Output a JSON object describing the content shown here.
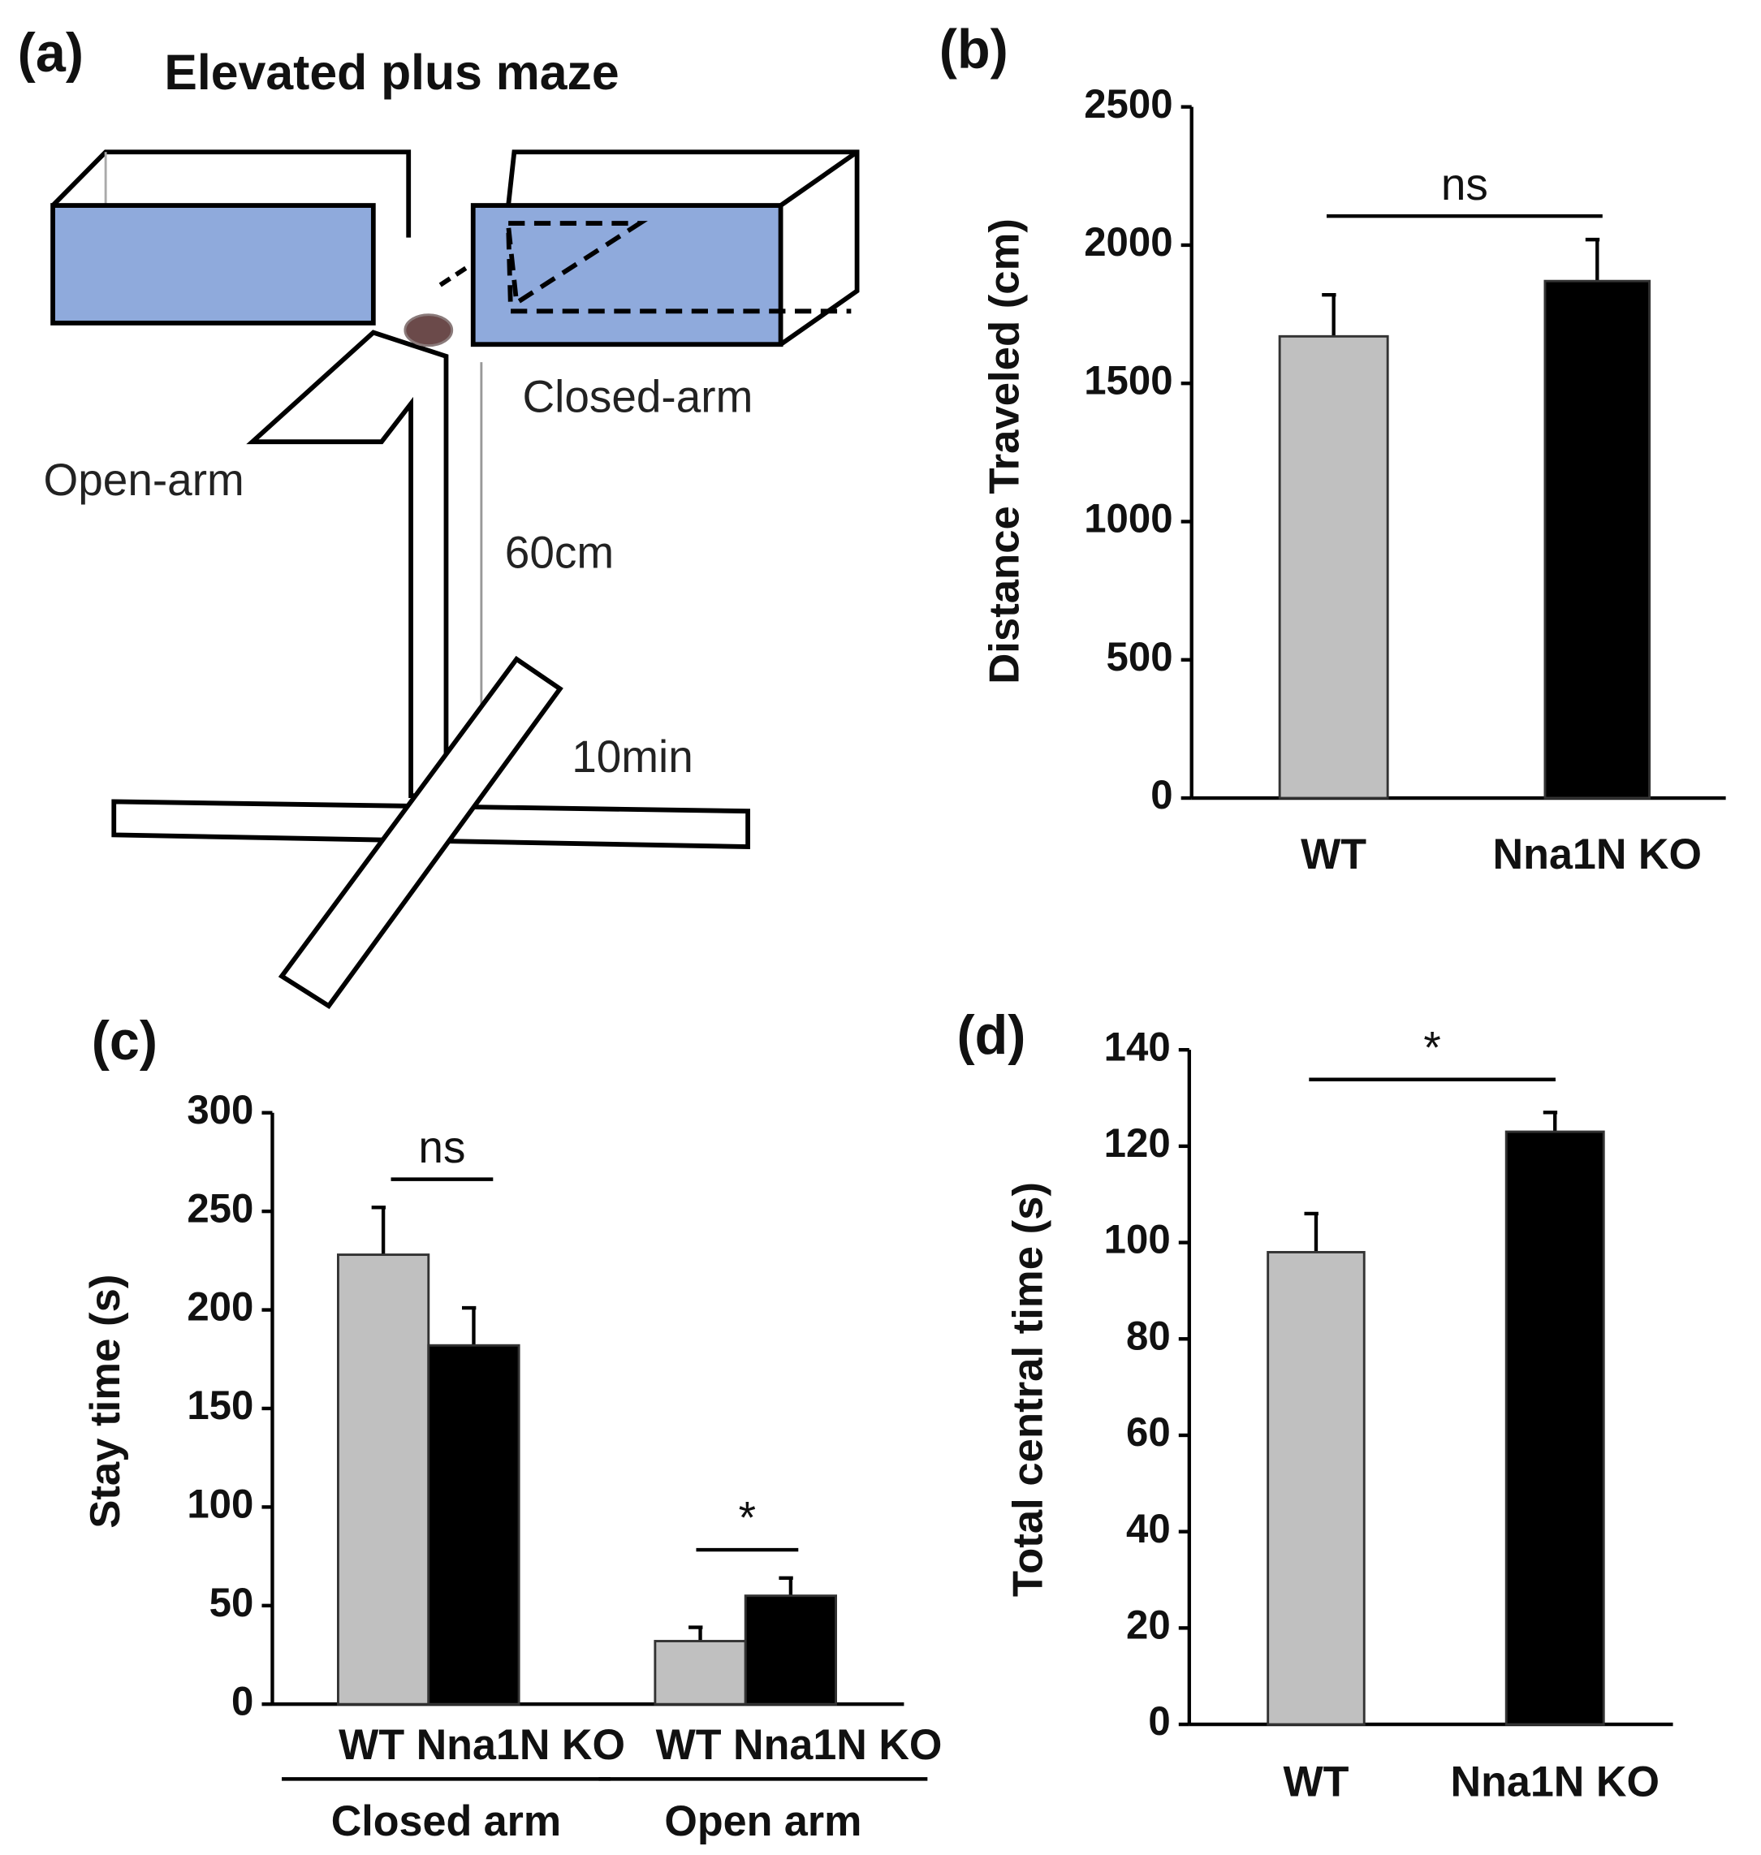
{
  "diagram": {
    "panel": "(a)",
    "title": "Elevated plus maze",
    "labels": [
      "Closed-arm",
      "Open-arm",
      "60cm",
      "10min"
    ]
  },
  "chart_data": [
    {
      "type": "bar",
      "panel": "(b)",
      "y_label": "Distance Traveled (cm)",
      "categories": [
        "WT",
        "Nna1N KO"
      ],
      "values": [
        1670,
        1870
      ],
      "errors": [
        150,
        150
      ],
      "colors": [
        "#c0c0c0",
        "#000000"
      ],
      "annotation": "ns",
      "ylim": [
        0,
        2500
      ],
      "yticks": [
        0,
        500,
        1000,
        1500,
        2000,
        2500
      ]
    },
    {
      "type": "grouped_bar",
      "panel": "(c)",
      "y_label": "Stay time (s)",
      "categories": [
        "Closed arm",
        "Open arm"
      ],
      "series": [
        {
          "name": "WT",
          "color": "#c0c0c0",
          "values": [
            228,
            32
          ],
          "errors": [
            24,
            7
          ]
        },
        {
          "name": "Nna1N KO",
          "color": "#000000",
          "values": [
            182,
            55
          ],
          "errors": [
            19,
            9
          ]
        }
      ],
      "annotations": [
        "ns",
        "*"
      ],
      "ylim": [
        0,
        300
      ],
      "yticks": [
        0,
        50,
        100,
        150,
        200,
        250,
        300
      ]
    },
    {
      "type": "bar",
      "panel": "(d)",
      "y_label": "Total central time (s)",
      "categories": [
        "WT",
        "Nna1N KO"
      ],
      "values": [
        98,
        123
      ],
      "errors": [
        8,
        4
      ],
      "colors": [
        "#c0c0c0",
        "#000000"
      ],
      "annotation": "*",
      "ylim": [
        0,
        140
      ],
      "yticks": [
        0,
        20,
        40,
        60,
        80,
        100,
        120,
        140
      ]
    }
  ]
}
